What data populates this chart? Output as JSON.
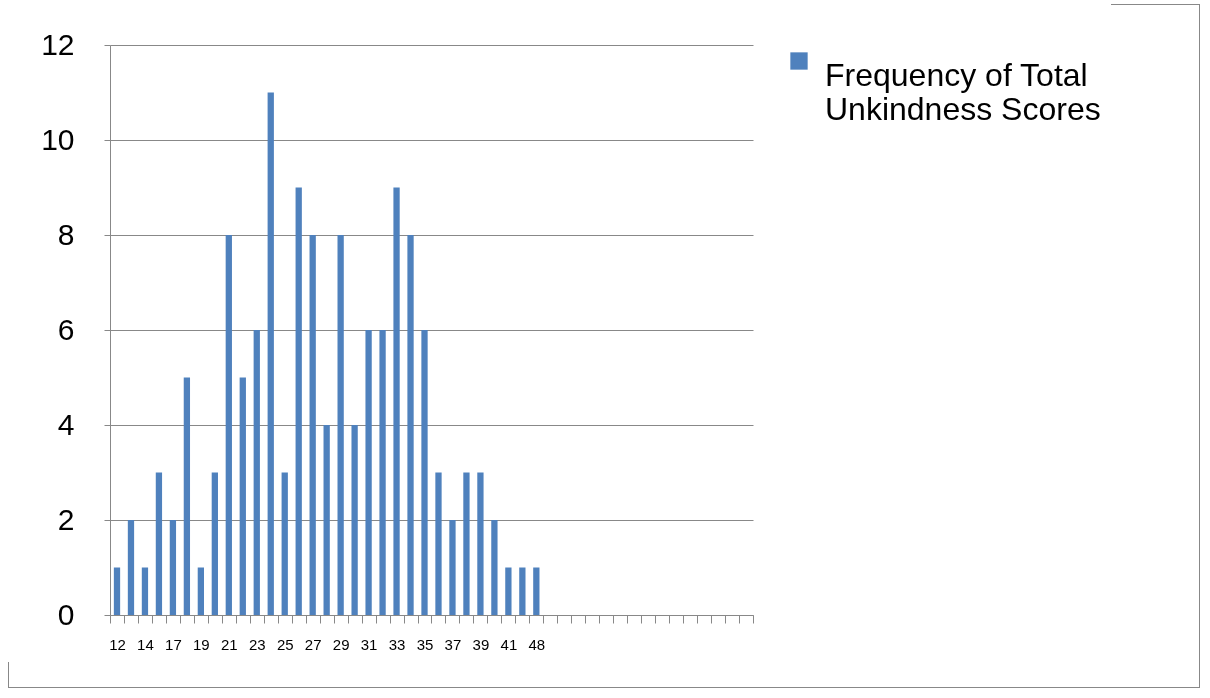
{
  "chart_data": {
    "type": "bar",
    "categories": [
      "12",
      null,
      "14",
      null,
      "17",
      null,
      "19",
      null,
      "21",
      null,
      "23",
      null,
      "25",
      null,
      "27",
      null,
      "29",
      null,
      "31",
      null,
      "33",
      null,
      "35",
      null,
      "37",
      null,
      "39",
      null,
      "41",
      null,
      "48",
      null,
      null,
      null,
      null,
      null,
      null,
      null,
      null,
      null,
      null,
      null,
      null,
      null,
      null,
      null
    ],
    "series": [
      {
        "name": "Frequency of Total Unkindness Scores",
        "color": "#4f81bd",
        "values": [
          1,
          2,
          1,
          3,
          2,
          5,
          1,
          3,
          8,
          5,
          6,
          11,
          3,
          9,
          8,
          4,
          8,
          4,
          6,
          6,
          9,
          8,
          6,
          3,
          2,
          3,
          3,
          2,
          1,
          1,
          1,
          null,
          null,
          null,
          null,
          null,
          null,
          null,
          null,
          null,
          null,
          null,
          null,
          null,
          null,
          null
        ]
      }
    ],
    "ylim": [
      0,
      12
    ],
    "yticks": [
      0,
      2,
      4,
      6,
      8,
      10,
      12
    ],
    "grid": "y",
    "legend": "right"
  }
}
